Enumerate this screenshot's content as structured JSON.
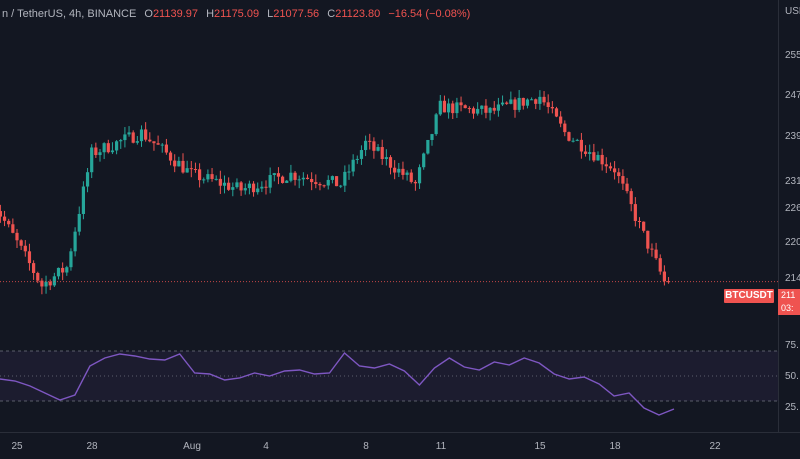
{
  "legend": {
    "symbol": "n / TetherUS, 4h, BINANCE",
    "open_label": "O",
    "open": "21139.97",
    "high_label": "H",
    "high": "21175.09",
    "low_label": "L",
    "low": "21077.56",
    "close_label": "C",
    "close": "21123.80",
    "change": "−16.54 (−0.08%)"
  },
  "price_axis": {
    "ticks": [
      {
        "label": "USD",
        "price": null
      },
      {
        "label": "255",
        "price": 25500
      },
      {
        "label": "247",
        "price": 24750
      },
      {
        "label": "239",
        "price": 23900
      },
      {
        "label": "231",
        "price": 23100
      },
      {
        "label": "226",
        "price": 22600
      },
      {
        "label": "220",
        "price": 22000
      },
      {
        "label": "214",
        "price": 21400
      }
    ]
  },
  "current_price": {
    "symbol_badge": "BTCUSDT",
    "price": "211",
    "countdown": "03:",
    "value": 21124
  },
  "rsi": {
    "ticks": [
      "75.",
      "50.",
      "25."
    ],
    "levels": [
      75,
      50,
      25
    ]
  },
  "time_axis": {
    "ticks": [
      "25",
      "28",
      "Aug",
      "4",
      "8",
      "11",
      "15",
      "18",
      "22"
    ]
  },
  "colors": {
    "up": "#26a69a",
    "down": "#ef5350",
    "rsi_line": "#7e57c2",
    "background": "#131722"
  },
  "chart_data": {
    "type": "candlestick",
    "timeframe": "4h",
    "x_range": [
      "2022-07-24",
      "2022-08-22"
    ],
    "ylim": [
      20700,
      25800
    ],
    "approx_close_path": [
      {
        "date": "2022-07-24",
        "close": 22700
      },
      {
        "date": "2022-07-26",
        "close": 21050
      },
      {
        "date": "2022-07-27",
        "close": 21400
      },
      {
        "date": "2022-07-28",
        "close": 23600
      },
      {
        "date": "2022-07-30",
        "close": 24000
      },
      {
        "date": "2022-08-01",
        "close": 23200
      },
      {
        "date": "2022-08-03",
        "close": 22900
      },
      {
        "date": "2022-08-05",
        "close": 23200
      },
      {
        "date": "2022-08-07",
        "close": 23000
      },
      {
        "date": "2022-08-08",
        "close": 23800
      },
      {
        "date": "2022-08-10",
        "close": 23000
      },
      {
        "date": "2022-08-11",
        "close": 24500
      },
      {
        "date": "2022-08-13",
        "close": 24400
      },
      {
        "date": "2022-08-15",
        "close": 24700
      },
      {
        "date": "2022-08-16",
        "close": 24000
      },
      {
        "date": "2022-08-18",
        "close": 23300
      },
      {
        "date": "2022-08-19",
        "close": 22200
      },
      {
        "date": "2022-08-20",
        "close": 21124
      }
    ],
    "rsi_series": {
      "name": "RSI",
      "values": [
        47,
        45,
        40,
        33,
        26,
        31,
        60,
        68,
        72,
        70,
        67,
        66,
        72,
        53,
        52,
        46,
        48,
        53,
        50,
        55,
        56,
        52,
        53,
        73,
        60,
        58,
        62,
        55,
        41,
        58,
        68,
        59,
        56,
        64,
        61,
        68,
        63,
        52,
        47,
        49,
        42,
        30,
        33,
        18,
        11,
        17
      ]
    }
  }
}
